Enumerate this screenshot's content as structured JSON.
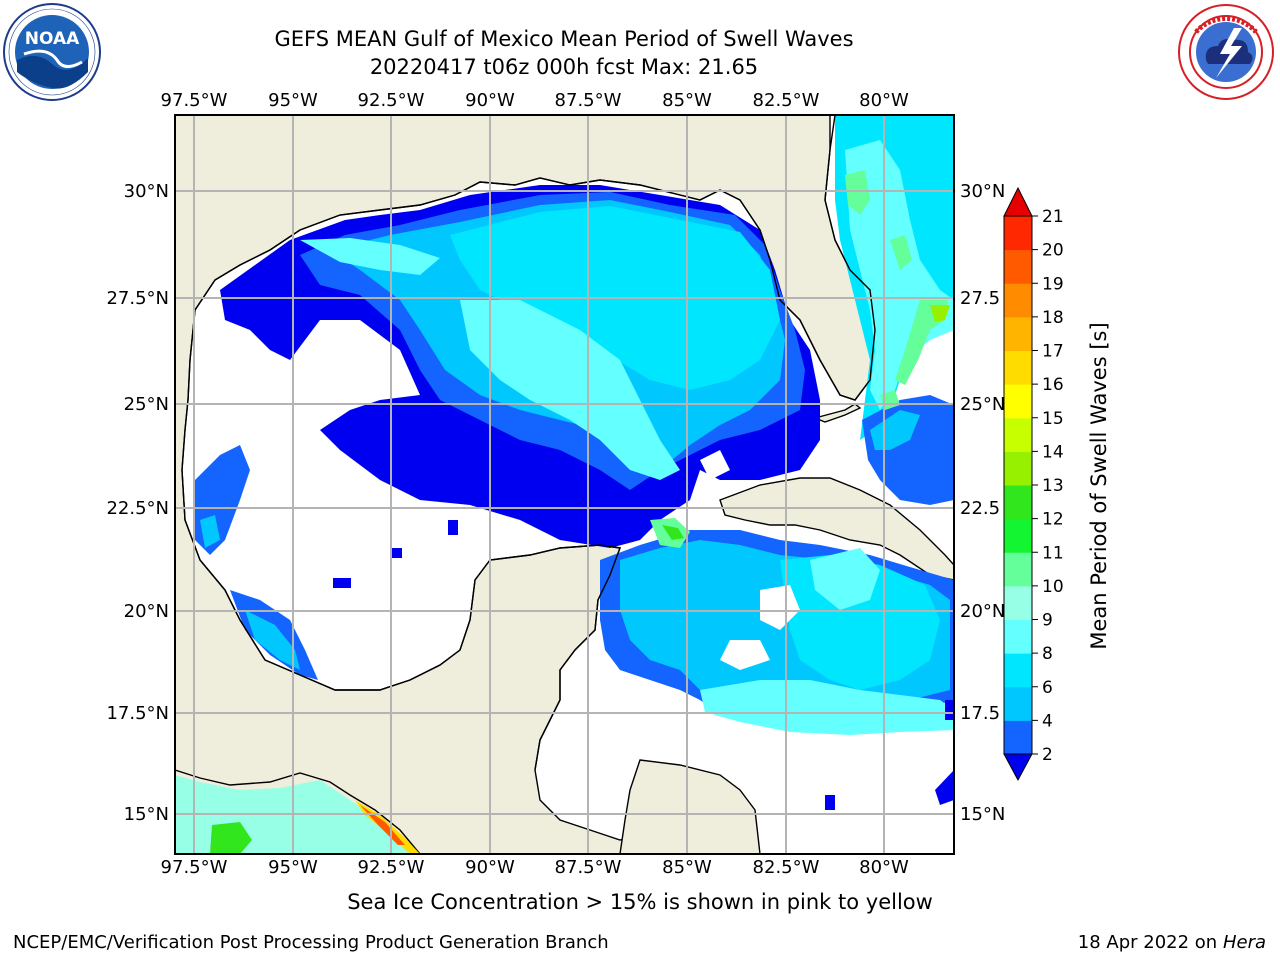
{
  "header": {
    "title": "GEFS MEAN Gulf of Mexico Mean Period of Swell Waves",
    "subtitle": "20220417 t06z 000h fcst   Max: 21.65"
  },
  "logos": {
    "noaa": {
      "text": "NOAA",
      "ring_text": "NATIONAL OCEANIC AND ATMOSPHERIC ADMINISTRATION · U.S. DEPARTMENT OF COMMERCE"
    },
    "nws": {
      "ring_text": "NATIONAL WEATHER SERVICE"
    }
  },
  "map": {
    "lon_labels": [
      "97.5°W",
      "95°W",
      "92.5°W",
      "90°W",
      "87.5°W",
      "85°W",
      "82.5°W",
      "80°W"
    ],
    "lat_labels_left": [
      "30°N",
      "27.5°N",
      "25°N",
      "22.5°N",
      "20°N",
      "17.5°N",
      "15°N"
    ],
    "lat_labels_right": [
      "30°N",
      "27.5",
      "25°N",
      "22.5",
      "20°N",
      "17.5",
      "15°N"
    ],
    "land_color": "#efeddc",
    "no_data_color": "#ffffff",
    "grid_color": "#b4b4b4"
  },
  "colorbar": {
    "label": "Mean Period of Swell Waves [s]",
    "ticks": [
      "2",
      "4",
      "6",
      "8",
      "9",
      "10",
      "11",
      "12",
      "13",
      "14",
      "15",
      "16",
      "17",
      "18",
      "19",
      "20",
      "21"
    ],
    "colors": [
      "#0000f0",
      "#1464ff",
      "#00c8ff",
      "#00e6ff",
      "#64ffff",
      "#96ffe6",
      "#64ff9b",
      "#14f532",
      "#32e61e",
      "#96f000",
      "#c8ff00",
      "#ffff00",
      "#ffdc00",
      "#ffb400",
      "#ff8c00",
      "#ff5a00",
      "#ff2800",
      "#e60000"
    ]
  },
  "footer": {
    "note": "Sea Ice Concentration > 15% is shown in pink to yellow",
    "credit": "NCEP/EMC/Verification Post Processing Product Generation Branch",
    "date": "18 Apr 2022 on ",
    "host": "Hera"
  }
}
